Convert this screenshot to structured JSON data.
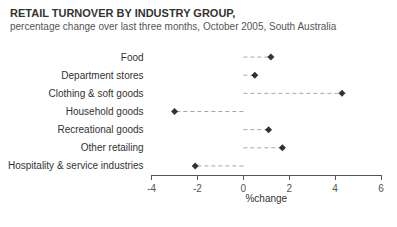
{
  "chart_data": {
    "type": "lollipop",
    "title": "RETAIL TURNOVER BY INDUSTRY GROUP,",
    "subtitle": "percentage change over last three months, October 2005, South Australia",
    "categories": [
      "Food",
      "Department stores",
      "Clothing & soft goods",
      "Household goods",
      "Recreational goods",
      "Other retailing",
      "Hospitality & service industries"
    ],
    "values": [
      1.2,
      0.5,
      4.3,
      -3.0,
      1.1,
      1.7,
      -2.1
    ],
    "xlabel": "%change",
    "xlim": [
      -4,
      6
    ],
    "xticks": [
      -4,
      -2,
      0,
      2,
      4,
      6
    ],
    "orientation": "horizontal",
    "marker": "diamond",
    "line_style": "dashed",
    "color": "#000000",
    "grid": false
  }
}
